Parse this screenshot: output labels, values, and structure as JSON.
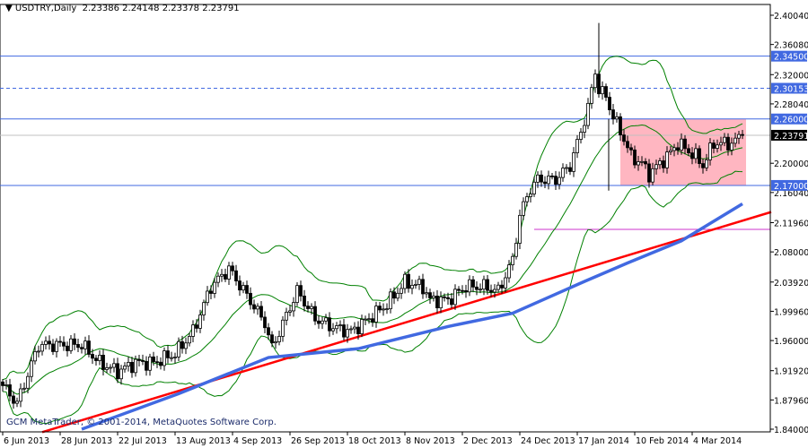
{
  "header": {
    "symbol": "USDTRY,Daily",
    "ohlc": "2.23386 2.24148 2.23378 2.23791"
  },
  "footer": {
    "copyright": "GCM MetaTrader, © 2001-2014, MetaQuotes Software Corp."
  },
  "colors": {
    "background": "#ffffff",
    "candles": "#000000",
    "bands": "#008000",
    "ma": "#4169e1",
    "trendline": "#ff0000",
    "levels": "#4169e1",
    "zone": "#ffb6c1",
    "support_line": "#cc33cc",
    "price_label_bg": "#4169e1",
    "current_label_bg": "#000000"
  },
  "chart_data": {
    "type": "candlestick",
    "title": "USDTRY,Daily",
    "ylim": [
      1.84,
      2.4004
    ],
    "y_ticks": [
      "2.40040",
      "2.36080",
      "2.32000",
      "2.28040",
      "2.20000",
      "2.16040",
      "2.11960",
      "2.08000",
      "2.03920",
      "1.99960",
      "1.96000",
      "1.91920",
      "1.87960",
      "1.84000"
    ],
    "x_ticks": [
      {
        "bar": 0,
        "label": "6 Jun 2013"
      },
      {
        "bar": 16,
        "label": "28 Jun 2013"
      },
      {
        "bar": 32,
        "label": "22 Jul 2013"
      },
      {
        "bar": 48,
        "label": "13 Aug 2013"
      },
      {
        "bar": 64,
        "label": "4 Sep 2013"
      },
      {
        "bar": 80,
        "label": "26 Sep 2013"
      },
      {
        "bar": 96,
        "label": "18 Oct 2013"
      },
      {
        "bar": 112,
        "label": "8 Nov 2013"
      },
      {
        "bar": 128,
        "label": "2 Dec 2013"
      },
      {
        "bar": 144,
        "label": "24 Dec 2013"
      },
      {
        "bar": 160,
        "label": "17 Jan 2014"
      },
      {
        "bar": 176,
        "label": "10 Feb 2014"
      },
      {
        "bar": 192,
        "label": "4 Mar 2014"
      }
    ],
    "close_path": [
      [
        0,
        1.899
      ],
      [
        4,
        1.875
      ],
      [
        10,
        1.954
      ],
      [
        17,
        1.954
      ],
      [
        22,
        1.954
      ],
      [
        27,
        1.93
      ],
      [
        32,
        1.918
      ],
      [
        37,
        1.93
      ],
      [
        42,
        1.93
      ],
      [
        48,
        1.942
      ],
      [
        53,
        1.972
      ],
      [
        58,
        2.033
      ],
      [
        63,
        2.057
      ],
      [
        68,
        2.021
      ],
      [
        73,
        1.984
      ],
      [
        75,
        1.95
      ],
      [
        77,
        1.972
      ],
      [
        82,
        2.027
      ],
      [
        87,
        1.99
      ],
      [
        92,
        1.978
      ],
      [
        97,
        1.972
      ],
      [
        102,
        1.99
      ],
      [
        107,
        2.009
      ],
      [
        112,
        2.039
      ],
      [
        117,
        2.033
      ],
      [
        119,
        2.015
      ],
      [
        124,
        2.015
      ],
      [
        129,
        2.033
      ],
      [
        134,
        2.033
      ],
      [
        138,
        2.027
      ],
      [
        142,
        2.069
      ],
      [
        144,
        2.13
      ],
      [
        147,
        2.166
      ],
      [
        149,
        2.178
      ],
      [
        154,
        2.178
      ],
      [
        158,
        2.197
      ],
      [
        160,
        2.227
      ],
      [
        163,
        2.275
      ],
      [
        165,
        2.324
      ],
      [
        166,
        2.3
      ],
      [
        168,
        2.29
      ],
      [
        170,
        2.263
      ],
      [
        173,
        2.233
      ],
      [
        175,
        2.209
      ],
      [
        178,
        2.2
      ],
      [
        180,
        2.185
      ],
      [
        183,
        2.2
      ],
      [
        185,
        2.209
      ],
      [
        188,
        2.227
      ],
      [
        190,
        2.22
      ],
      [
        193,
        2.209
      ],
      [
        195,
        2.197
      ],
      [
        198,
        2.227
      ],
      [
        200,
        2.227
      ],
      [
        203,
        2.227
      ],
      [
        206,
        2.2379
      ]
    ],
    "spike": {
      "bar": 166,
      "high": 2.39
    },
    "moving_average": [
      [
        22,
        1.84
      ],
      [
        49,
        1.888
      ],
      [
        74,
        1.937
      ],
      [
        99,
        1.949
      ],
      [
        124,
        1.979
      ],
      [
        142,
        1.997
      ],
      [
        162,
        2.04
      ],
      [
        174,
        2.065
      ],
      [
        189,
        2.095
      ],
      [
        206,
        2.145
      ]
    ],
    "trendline": [
      [
        11,
        1.836
      ],
      [
        214,
        2.134
      ]
    ],
    "levels": [
      {
        "price": 2.345,
        "label": "2.34500",
        "style": "solid"
      },
      {
        "price": 2.30153,
        "label": "2.30153",
        "style": "dashed"
      },
      {
        "price": 2.26,
        "label": "2.26000",
        "style": "solid"
      },
      {
        "price": 2.17,
        "label": "2.17000",
        "style": "solid"
      }
    ],
    "current_price": {
      "price": 2.23791,
      "label": "2.23791"
    },
    "support_line": {
      "price": 2.1105,
      "from_bar": 148
    },
    "zone": {
      "from_bar": 172,
      "to_bar": 207,
      "high": 2.26,
      "low": 2.17
    },
    "bollinger": {
      "period": 20,
      "deviations": 2
    }
  }
}
